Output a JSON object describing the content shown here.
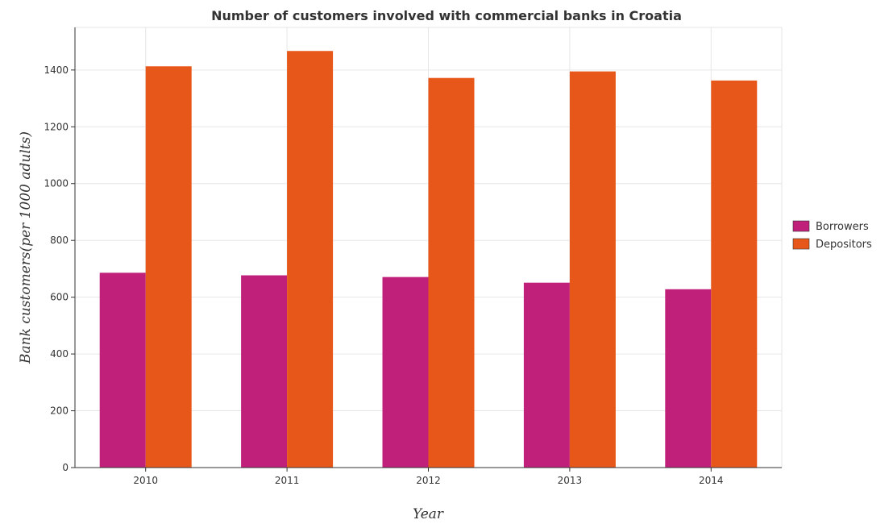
{
  "chart_data": {
    "type": "bar",
    "title": "Number of customers involved with commercial banks in Croatia",
    "xlabel": "Year",
    "ylabel": "Bank customers(per 1000 adults)",
    "categories": [
      "2010",
      "2011",
      "2012",
      "2013",
      "2014"
    ],
    "series": [
      {
        "name": "Borrowers",
        "color": "#c0207a",
        "values": [
          686,
          677,
          671,
          651,
          628
        ]
      },
      {
        "name": "Depositors",
        "color": "#e8571a",
        "values": [
          1413,
          1467,
          1372,
          1395,
          1363
        ]
      }
    ],
    "ylim": [
      0,
      1550
    ],
    "yticks": [
      0,
      200,
      400,
      600,
      800,
      1000,
      1200,
      1400
    ],
    "grid": true,
    "legend": "right"
  }
}
